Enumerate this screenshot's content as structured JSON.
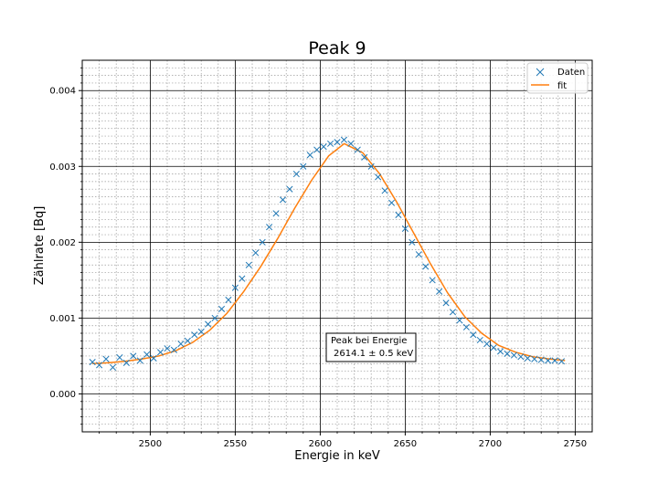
{
  "chart_data": {
    "type": "scatter",
    "title": "Peak 9",
    "xlabel": "Energie in keV",
    "ylabel": "Zählrate [Bq]",
    "xlim": [
      2460,
      2760
    ],
    "ylim": [
      -0.0005,
      0.0044
    ],
    "x_ticks": [
      "2500",
      "2550",
      "2600",
      "2650",
      "2700",
      "2750"
    ],
    "y_ticks": [
      "0.000",
      "0.001",
      "0.002",
      "0.003",
      "0.004"
    ],
    "grid": true,
    "minor_grid": true,
    "legend": {
      "placement": "top-right",
      "entries": [
        "Daten",
        "fit"
      ]
    },
    "annotation": {
      "line1": "Peak bei Energie",
      "line2": "2614.1 ± 0.5 keV"
    },
    "series": [
      {
        "name": "Daten",
        "kind": "scatter",
        "marker": "x",
        "color": "#1f77b4",
        "x": [
          2466,
          2470,
          2474,
          2478,
          2482,
          2486,
          2490,
          2494,
          2498,
          2502,
          2506,
          2510,
          2514,
          2518,
          2522,
          2526,
          2530,
          2534,
          2538,
          2542,
          2546,
          2550,
          2554,
          2558,
          2562,
          2566,
          2570,
          2574,
          2578,
          2582,
          2586,
          2590,
          2594,
          2598,
          2602,
          2606,
          2610,
          2614,
          2618,
          2622,
          2626,
          2630,
          2634,
          2638,
          2642,
          2646,
          2650,
          2654,
          2658,
          2662,
          2666,
          2670,
          2674,
          2678,
          2682,
          2686,
          2690,
          2694,
          2698,
          2702,
          2706,
          2710,
          2714,
          2718,
          2722,
          2726,
          2730,
          2734,
          2738,
          2742
        ],
        "y": [
          0.00042,
          0.00038,
          0.00046,
          0.00035,
          0.00048,
          0.00041,
          0.0005,
          0.00044,
          0.00052,
          0.00047,
          0.00055,
          0.0006,
          0.00058,
          0.00066,
          0.0007,
          0.00078,
          0.00082,
          0.00092,
          0.001,
          0.00112,
          0.00124,
          0.0014,
          0.00152,
          0.0017,
          0.00186,
          0.002,
          0.0022,
          0.00238,
          0.00256,
          0.0027,
          0.0029,
          0.003,
          0.00315,
          0.00322,
          0.00326,
          0.0033,
          0.00332,
          0.00335,
          0.0033,
          0.00322,
          0.00312,
          0.003,
          0.00286,
          0.00268,
          0.00252,
          0.00236,
          0.00218,
          0.002,
          0.00184,
          0.00168,
          0.0015,
          0.00135,
          0.0012,
          0.00108,
          0.00097,
          0.00088,
          0.00078,
          0.00071,
          0.00066,
          0.00061,
          0.00056,
          0.00053,
          0.00051,
          0.00049,
          0.00047,
          0.00046,
          0.00045,
          0.00044,
          0.00044,
          0.00043
        ]
      },
      {
        "name": "fit",
        "kind": "line",
        "color": "#ff7f0e",
        "x": [
          2466,
          2475,
          2485,
          2495,
          2505,
          2515,
          2525,
          2535,
          2545,
          2555,
          2565,
          2575,
          2585,
          2595,
          2605,
          2614.1,
          2625,
          2635,
          2645,
          2655,
          2665,
          2675,
          2685,
          2695,
          2705,
          2715,
          2725,
          2735,
          2744
        ],
        "y": [
          0.0004,
          0.00041,
          0.00043,
          0.00046,
          0.0005,
          0.00057,
          0.00068,
          0.00084,
          0.00106,
          0.00135,
          0.00168,
          0.00205,
          0.00245,
          0.00282,
          0.00314,
          0.0033,
          0.00318,
          0.0029,
          0.00253,
          0.00212,
          0.00171,
          0.00133,
          0.00102,
          0.0008,
          0.00064,
          0.00055,
          0.00049,
          0.00046,
          0.00044
        ]
      }
    ]
  }
}
